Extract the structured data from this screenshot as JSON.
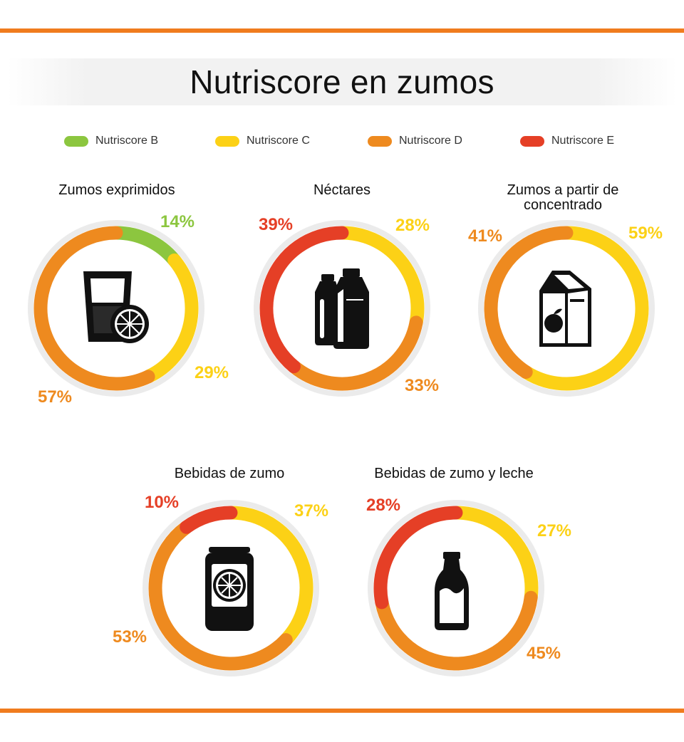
{
  "title": "Nutriscore en zumos",
  "colors": {
    "B": "#8cc63f",
    "C": "#fcd116",
    "D": "#ee8a1f",
    "E": "#e53f26",
    "rule": "#f07c1e"
  },
  "legend": [
    {
      "key": "B",
      "label": "Nutriscore B"
    },
    {
      "key": "C",
      "label": "Nutriscore C"
    },
    {
      "key": "D",
      "label": "Nutriscore D"
    },
    {
      "key": "E",
      "label": "Nutriscore E"
    }
  ],
  "chart_data": [
    {
      "type": "pie",
      "title": "Zumos exprimidos",
      "icon": "glass-with-lemon-icon",
      "slices": [
        {
          "grade": "B",
          "value": 14,
          "label": "14%"
        },
        {
          "grade": "C",
          "value": 29,
          "label": "29%"
        },
        {
          "grade": "D",
          "value": 57,
          "label": "57%"
        }
      ]
    },
    {
      "type": "pie",
      "title": "Néctares",
      "icon": "two-bottles-icon",
      "slices": [
        {
          "grade": "C",
          "value": 28,
          "label": "28%"
        },
        {
          "grade": "D",
          "value": 33,
          "label": "33%"
        },
        {
          "grade": "E",
          "value": 39,
          "label": "39%"
        }
      ]
    },
    {
      "type": "pie",
      "title": "Zumos a partir de concentrado",
      "icon": "juice-carton-icon",
      "slices": [
        {
          "grade": "C",
          "value": 59,
          "label": "59%"
        },
        {
          "grade": "D",
          "value": 41,
          "label": "41%"
        }
      ]
    },
    {
      "type": "pie",
      "title": "Bebidas de zumo",
      "icon": "orange-can-icon",
      "slices": [
        {
          "grade": "C",
          "value": 37,
          "label": "37%"
        },
        {
          "grade": "D",
          "value": 53,
          "label": "53%"
        },
        {
          "grade": "E",
          "value": 10,
          "label": "10%"
        }
      ]
    },
    {
      "type": "pie",
      "title": "Bebidas de zumo y leche",
      "icon": "milk-bottle-icon",
      "slices": [
        {
          "grade": "C",
          "value": 27,
          "label": "27%"
        },
        {
          "grade": "D",
          "value": 45,
          "label": "45%"
        },
        {
          "grade": "E",
          "value": 28,
          "label": "28%"
        }
      ]
    }
  ]
}
